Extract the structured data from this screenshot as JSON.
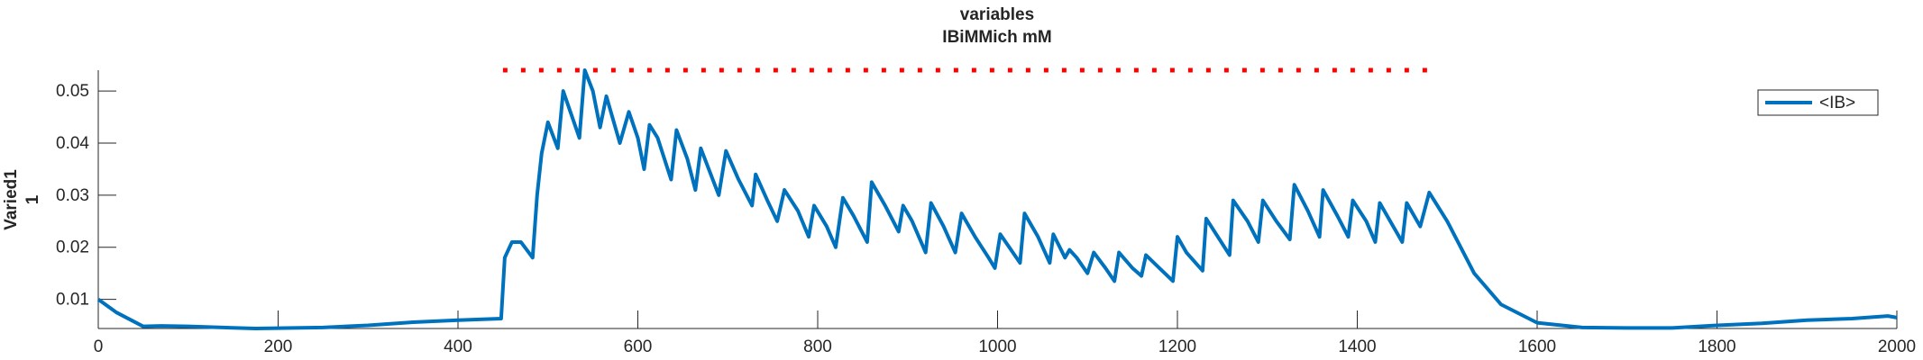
{
  "chart_data": {
    "type": "line",
    "title": [
      "variables",
      "IBiMMich mM"
    ],
    "ylabel": [
      "Varied1",
      "1"
    ],
    "xlim": [
      0,
      2000
    ],
    "xticks": [
      0,
      200,
      400,
      600,
      800,
      1000,
      1200,
      1400,
      1600,
      1800,
      2000
    ],
    "ylim": [
      0.0044,
      0.054
    ],
    "yticks": [
      0.01,
      0.02,
      0.03,
      0.04,
      0.05
    ],
    "legend": "upper right",
    "series": [
      {
        "name": "<IB>",
        "color": "#0072bd",
        "style": "solid",
        "x": [
          0,
          20,
          50,
          70,
          100,
          175,
          250,
          300,
          350,
          400,
          448,
          452,
          460,
          470,
          483,
          488,
          493,
          500,
          511,
          517,
          525,
          535,
          541,
          550,
          558,
          565,
          580,
          590,
          600,
          607,
          613,
          622,
          637,
          643,
          655,
          664,
          670,
          690,
          698,
          712,
          727,
          731,
          744,
          755,
          763,
          778,
          790,
          796,
          810,
          820,
          828,
          840,
          855,
          860,
          875,
          890,
          895,
          905,
          920,
          926,
          940,
          953,
          960,
          975,
          990,
          997,
          1003,
          1025,
          1030,
          1045,
          1058,
          1062,
          1075,
          1080,
          1088,
          1100,
          1107,
          1120,
          1130,
          1135,
          1150,
          1160,
          1165,
          1180,
          1195,
          1200,
          1210,
          1228,
          1232,
          1245,
          1258,
          1262,
          1278,
          1290,
          1295,
          1310,
          1325,
          1330,
          1345,
          1358,
          1362,
          1378,
          1390,
          1395,
          1410,
          1420,
          1425,
          1440,
          1450,
          1455,
          1470,
          1480,
          1500,
          1530,
          1560,
          1600,
          1650,
          1700,
          1750,
          1800,
          1850,
          1900,
          1950,
          1990,
          2000
        ],
        "values": [
          0.01,
          0.0075,
          0.0048,
          0.0049,
          0.0048,
          0.0044,
          0.0046,
          0.005,
          0.0056,
          0.006,
          0.0063,
          0.018,
          0.021,
          0.021,
          0.018,
          0.03,
          0.038,
          0.044,
          0.039,
          0.05,
          0.046,
          0.041,
          0.054,
          0.05,
          0.043,
          0.049,
          0.04,
          0.046,
          0.041,
          0.035,
          0.0435,
          0.041,
          0.033,
          0.0425,
          0.037,
          0.031,
          0.039,
          0.03,
          0.0385,
          0.033,
          0.028,
          0.034,
          0.029,
          0.025,
          0.031,
          0.027,
          0.022,
          0.028,
          0.024,
          0.02,
          0.0295,
          0.026,
          0.021,
          0.0325,
          0.028,
          0.023,
          0.028,
          0.025,
          0.019,
          0.0285,
          0.024,
          0.019,
          0.0265,
          0.022,
          0.018,
          0.016,
          0.0225,
          0.017,
          0.0265,
          0.022,
          0.017,
          0.0225,
          0.018,
          0.0195,
          0.018,
          0.015,
          0.019,
          0.016,
          0.0135,
          0.019,
          0.016,
          0.0145,
          0.0185,
          0.016,
          0.0135,
          0.022,
          0.019,
          0.0155,
          0.0255,
          0.022,
          0.0185,
          0.029,
          0.025,
          0.021,
          0.029,
          0.025,
          0.0215,
          0.032,
          0.027,
          0.022,
          0.031,
          0.026,
          0.022,
          0.029,
          0.025,
          0.021,
          0.0285,
          0.024,
          0.021,
          0.0285,
          0.024,
          0.0305,
          0.025,
          0.015,
          0.009,
          0.0055,
          0.0046,
          0.0045,
          0.0045,
          0.005,
          0.0054,
          0.006,
          0.0063,
          0.0068,
          0.0065
        ]
      },
      {
        "color": "#ff0000",
        "style": "dotted",
        "x": [
          450,
          1480
        ],
        "values": [
          0.054,
          0.054
        ]
      }
    ]
  }
}
